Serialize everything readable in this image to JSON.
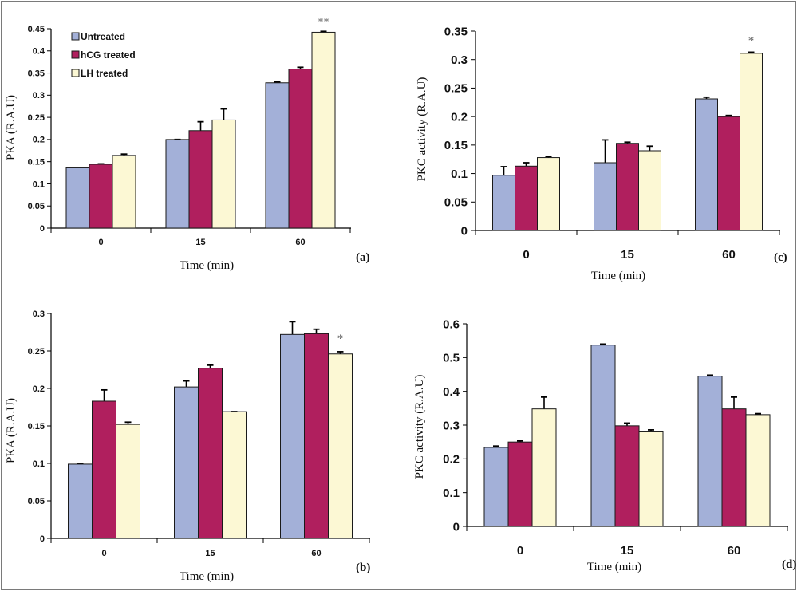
{
  "legend": [
    {
      "label": "Untreated",
      "color": "#a3b0d8"
    },
    {
      "label": "hCG treated",
      "color": "#b01f5e"
    },
    {
      "label": "LH treated",
      "color": "#fcf8d4"
    }
  ],
  "chart_data": [
    {
      "panel": "(a)",
      "type": "bar",
      "ylabel": "PKA (R.A.U)",
      "xlabel": "Time (min)",
      "categories": [
        "0",
        "15",
        "60"
      ],
      "ylim": [
        0,
        0.45
      ],
      "yticks": [
        "0",
        "0.05",
        "0.1",
        "0.15",
        "0.2",
        "0.25",
        "0.3",
        "0.35",
        "0.4",
        "0.45"
      ],
      "series": [
        {
          "name": "Untreated",
          "values": [
            0.136,
            0.2,
            0.328
          ],
          "errors": [
            0.0,
            0.0,
            0.002
          ]
        },
        {
          "name": "hCG treated",
          "values": [
            0.144,
            0.22,
            0.359
          ],
          "errors": [
            0.001,
            0.02,
            0.004
          ]
        },
        {
          "name": "LH treated",
          "values": [
            0.164,
            0.244,
            0.442
          ],
          "errors": [
            0.003,
            0.025,
            0.002
          ]
        }
      ],
      "annotations": [
        {
          "text": "**",
          "category": "60",
          "series": "LH treated"
        }
      ]
    },
    {
      "panel": "(b)",
      "type": "bar",
      "ylabel": "PKA (R.A.U)",
      "xlabel": "Time (min)",
      "categories": [
        "0",
        "15",
        "60"
      ],
      "ylim": [
        0,
        0.3
      ],
      "yticks": [
        "0",
        "0.05",
        "0.1",
        "0.15",
        "0.2",
        "0.25",
        "0.3"
      ],
      "series": [
        {
          "name": "Untreated",
          "values": [
            0.099,
            0.202,
            0.272
          ],
          "errors": [
            0.001,
            0.008,
            0.017
          ]
        },
        {
          "name": "hCG treated",
          "values": [
            0.183,
            0.227,
            0.273
          ],
          "errors": [
            0.015,
            0.004,
            0.006
          ]
        },
        {
          "name": "LH treated",
          "values": [
            0.152,
            0.169,
            0.246
          ],
          "errors": [
            0.003,
            0.0,
            0.003
          ]
        }
      ],
      "annotations": [
        {
          "text": "*",
          "category": "60",
          "series": "LH treated"
        }
      ]
    },
    {
      "panel": "(c)",
      "type": "bar",
      "ylabel": "PKC activity (R.A.U)",
      "xlabel": "Time (min)",
      "categories": [
        "0",
        "15",
        "60"
      ],
      "ylim": [
        0,
        0.35
      ],
      "yticks": [
        "0",
        "0.05",
        "0.1",
        "0.15",
        "0.2",
        "0.25",
        "0.3",
        "0.35"
      ],
      "series": [
        {
          "name": "Untreated",
          "values": [
            0.097,
            0.119,
            0.231
          ],
          "errors": [
            0.015,
            0.04,
            0.003
          ]
        },
        {
          "name": "hCG treated",
          "values": [
            0.113,
            0.153,
            0.2
          ],
          "errors": [
            0.006,
            0.002,
            0.002
          ]
        },
        {
          "name": "LH treated",
          "values": [
            0.128,
            0.14,
            0.311
          ],
          "errors": [
            0.002,
            0.008,
            0.002
          ]
        }
      ],
      "annotations": [
        {
          "text": "*",
          "category": "60",
          "series": "LH treated"
        }
      ]
    },
    {
      "panel": "(d)",
      "type": "bar",
      "ylabel": "PKC activity (R.A.U)",
      "xlabel": "Time (min)",
      "categories": [
        "0",
        "15",
        "60"
      ],
      "ylim": [
        0,
        0.6
      ],
      "yticks": [
        "0",
        "0.1",
        "0.2",
        "0.3",
        "0.4",
        "0.5",
        "0.6"
      ],
      "series": [
        {
          "name": "Untreated",
          "values": [
            0.234,
            0.537,
            0.445
          ],
          "errors": [
            0.004,
            0.003,
            0.003
          ]
        },
        {
          "name": "hCG treated",
          "values": [
            0.25,
            0.298,
            0.348
          ],
          "errors": [
            0.003,
            0.008,
            0.035
          ]
        },
        {
          "name": "LH treated",
          "values": [
            0.348,
            0.28,
            0.331
          ],
          "errors": [
            0.035,
            0.006,
            0.003
          ]
        }
      ],
      "annotations": []
    }
  ]
}
